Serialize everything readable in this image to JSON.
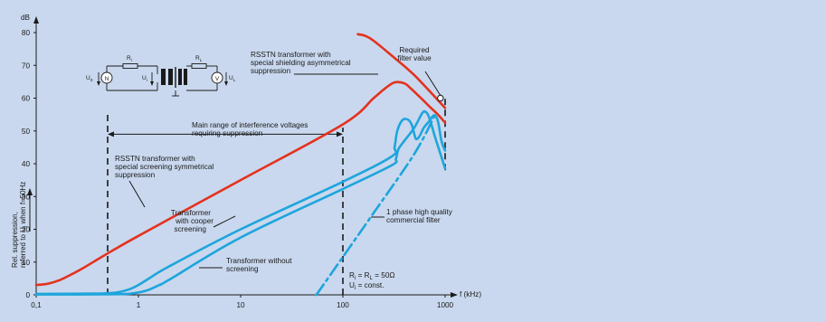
{
  "chart_data": {
    "type": "line",
    "xscale": "log",
    "xlim": [
      0.1,
      1000
    ],
    "ylim": [
      0,
      80
    ],
    "xlabel": "f (kHz)",
    "ylabel": "dB",
    "yaxis_side_label": [
      "Rel. suppression,",
      "referred to U",
      "when f=50Hz"
    ],
    "yaxis_side_label_sub": "i",
    "x_ticks": [
      {
        "value": 0.1,
        "label": "0,1"
      },
      {
        "value": 1,
        "label": "1"
      },
      {
        "value": 10,
        "label": "10"
      },
      {
        "value": 100,
        "label": "100"
      },
      {
        "value": 1000,
        "label": "1000"
      }
    ],
    "y_ticks": [
      0,
      10,
      20,
      30,
      40,
      50,
      60,
      70,
      80
    ],
    "colors": {
      "red": "#e4321e",
      "blue": "#1ea5dc",
      "dark": "#1a1a1a"
    },
    "series": [
      {
        "key": "rsstn_sym",
        "color": "red",
        "style": "solid",
        "points": [
          [
            0.1,
            3
          ],
          [
            0.13,
            3.4
          ],
          [
            0.17,
            4.5
          ],
          [
            0.22,
            6.2
          ],
          [
            0.3,
            8.5
          ],
          [
            0.45,
            11.8
          ],
          [
            1,
            18
          ],
          [
            10,
            35
          ],
          [
            100,
            52
          ],
          [
            200,
            60
          ],
          [
            260,
            63
          ],
          [
            320,
            64.8
          ],
          [
            400,
            64.5
          ],
          [
            460,
            63
          ],
          [
            560,
            60.5
          ],
          [
            700,
            57.5
          ],
          [
            850,
            55
          ],
          [
            1000,
            52.5
          ]
        ]
      },
      {
        "key": "rsstn_asym",
        "color": "red",
        "style": "solid",
        "points": [
          [
            140,
            79.5
          ],
          [
            165,
            79
          ],
          [
            200,
            77.5
          ],
          [
            300,
            73
          ],
          [
            500,
            67
          ],
          [
            1000,
            57
          ]
        ]
      },
      {
        "key": "cooper",
        "color": "blue",
        "style": "solid",
        "points": [
          [
            0.1,
            0.3
          ],
          [
            0.4,
            0.4
          ],
          [
            0.6,
            0.7
          ],
          [
            0.8,
            1.6
          ],
          [
            1,
            3
          ],
          [
            1.3,
            5.2
          ],
          [
            2,
            8.7
          ],
          [
            10,
            20
          ],
          [
            100,
            34.5
          ],
          [
            300,
            42.2
          ],
          [
            320,
            45
          ],
          [
            340,
            50
          ],
          [
            380,
            53.2
          ],
          [
            430,
            53.5
          ],
          [
            470,
            52
          ],
          [
            500,
            49
          ],
          [
            520,
            47.5
          ],
          [
            560,
            48.3
          ],
          [
            620,
            51
          ],
          [
            700,
            53
          ],
          [
            780,
            54.8
          ],
          [
            850,
            53
          ],
          [
            920,
            47
          ],
          [
            1000,
            44
          ]
        ]
      },
      {
        "key": "without",
        "color": "blue",
        "style": "solid",
        "points": [
          [
            0.1,
            0.1
          ],
          [
            0.6,
            0.2
          ],
          [
            0.9,
            0.5
          ],
          [
            1.2,
            1.3
          ],
          [
            1.6,
            3
          ],
          [
            2,
            4.6
          ],
          [
            10,
            17.5
          ],
          [
            100,
            32.3
          ],
          [
            300,
            39.5
          ],
          [
            330,
            41.5
          ],
          [
            350,
            44.5
          ],
          [
            400,
            47
          ],
          [
            500,
            51
          ],
          [
            600,
            55.5
          ],
          [
            650,
            55.7
          ],
          [
            700,
            54
          ],
          [
            800,
            48
          ],
          [
            900,
            43
          ],
          [
            1000,
            38.5
          ]
        ]
      },
      {
        "key": "commercial",
        "color": "blue",
        "style": "dashdot",
        "points": [
          [
            55,
            0
          ],
          [
            200,
            25
          ],
          [
            500,
            43
          ],
          [
            800,
            55
          ]
        ]
      }
    ],
    "vlines": [
      {
        "x": 0.5,
        "from": 0,
        "to": 56
      },
      {
        "x": 100,
        "from": 0,
        "to": 51
      },
      {
        "x": 1000,
        "from": 38,
        "to": 60
      }
    ],
    "range_arrow": {
      "x1": 0.5,
      "x2": 100,
      "y": 49
    },
    "required_filter_point": {
      "x": 900,
      "y": 60
    },
    "annotations": {
      "rsstn_asym": [
        "RSSTN transformer with",
        "special shielding asymmetrical",
        "suppression"
      ],
      "required": [
        "Required",
        "filter value"
      ],
      "main_range": [
        "Main range of interference voltages",
        "requiring suppression"
      ],
      "rsstn_sym": [
        "RSSTN transformer with",
        "special screening symmetrical",
        "suppression"
      ],
      "cooper": [
        "Transformer",
        "with cooper",
        "screening"
      ],
      "without": [
        "Transformer without",
        "screening"
      ],
      "commercial": [
        "1 phase high quality",
        "commercial filter"
      ],
      "formula1": "R",
      "formula1_sub_a": "i",
      "formula1_mid": " = R",
      "formula1_sub_b": "L",
      "formula1_end": " = 50Ω",
      "formula2": "U",
      "formula2_sub": "i",
      "formula2_end": " = const."
    },
    "circuit_labels": {
      "Ri": "R",
      "Ri_sub": "i",
      "RL": "R",
      "RL_sub": "L",
      "u0": "U",
      "u0_sub": "0",
      "ui": "U",
      "ui_sub": "i",
      "uL": "U",
      "uL_sub": "L",
      "N": "N",
      "V": "V"
    }
  }
}
